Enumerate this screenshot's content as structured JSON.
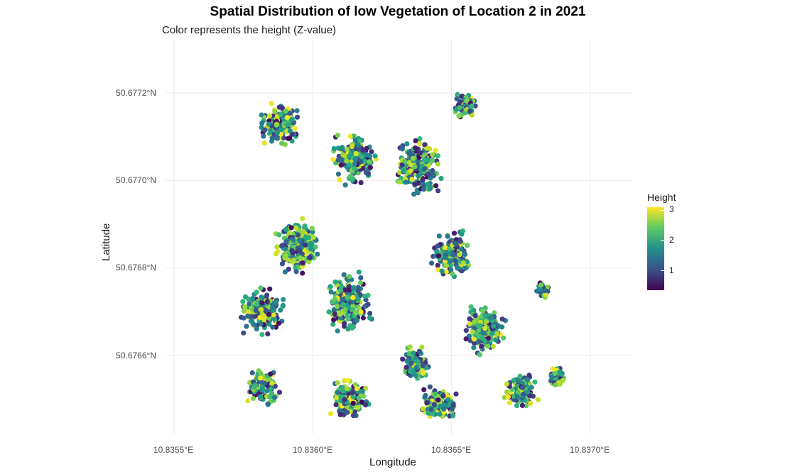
{
  "chart_data": {
    "type": "scatter",
    "title": "Spatial Distribution of low Vegetation of Location 2 in 2021",
    "subtitle": "Color represents the height (Z-value)",
    "xlabel": "Longitude",
    "ylabel": "Latitude",
    "x_ticks": [
      "10.8355°E",
      "10.8360°E",
      "10.8365°E",
      "10.8370°E"
    ],
    "y_ticks": [
      "50.6766°N",
      "50.6768°N",
      "50.6770°N",
      "50.6772°N"
    ],
    "x_tick_values": [
      10.8355,
      10.836,
      10.8365,
      10.837
    ],
    "y_tick_values": [
      50.6766,
      50.6768,
      50.677,
      50.6772
    ],
    "xlim": [
      10.8354,
      10.83715
    ],
    "ylim": [
      50.67645,
      50.67734
    ],
    "data_extent": {
      "lon": [
        10.83568,
        10.83693
      ],
      "lat": [
        50.67646,
        50.67728
      ]
    },
    "legend": {
      "title": "Height",
      "ticks": [
        "1",
        "2",
        "3"
      ],
      "range": [
        0.3,
        3.0
      ],
      "colormap": "viridis"
    },
    "grid": true,
    "clusters": [
      {
        "lon": 10.83588,
        "lat": 50.67713,
        "r": 8e-05,
        "n": 170
      },
      {
        "lon": 10.83615,
        "lat": 50.67705,
        "r": 9e-05,
        "n": 190
      },
      {
        "lon": 10.83595,
        "lat": 50.67685,
        "r": 0.0001,
        "n": 230
      },
      {
        "lon": 10.83638,
        "lat": 50.67703,
        "r": 0.0001,
        "n": 220
      },
      {
        "lon": 10.83582,
        "lat": 50.6767,
        "r": 9e-05,
        "n": 180
      },
      {
        "lon": 10.83613,
        "lat": 50.67672,
        "r": 0.0001,
        "n": 220
      },
      {
        "lon": 10.8365,
        "lat": 50.67683,
        "r": 8e-05,
        "n": 190
      },
      {
        "lon": 10.83662,
        "lat": 50.67666,
        "r": 9e-05,
        "n": 200
      },
      {
        "lon": 10.83637,
        "lat": 50.67658,
        "r": 6e-05,
        "n": 120
      },
      {
        "lon": 10.83582,
        "lat": 50.67653,
        "r": 7e-05,
        "n": 130
      },
      {
        "lon": 10.83613,
        "lat": 50.6765,
        "r": 8e-05,
        "n": 150
      },
      {
        "lon": 10.83645,
        "lat": 50.67648,
        "r": 8e-05,
        "n": 150
      },
      {
        "lon": 10.83675,
        "lat": 50.67652,
        "r": 7e-05,
        "n": 130
      },
      {
        "lon": 10.83688,
        "lat": 50.67655,
        "r": 4e-05,
        "n": 60
      },
      {
        "lon": 10.83655,
        "lat": 50.67717,
        "r": 5e-05,
        "n": 70
      },
      {
        "lon": 10.83683,
        "lat": 50.67675,
        "r": 3e-05,
        "n": 40
      }
    ]
  }
}
